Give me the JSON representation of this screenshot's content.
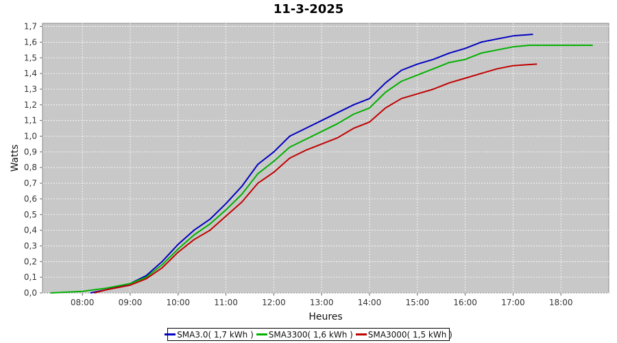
{
  "chart_data": {
    "type": "line",
    "title": "11-3-2025",
    "xlabel": "Heures",
    "ylabel": "Watts",
    "xlim": [
      "07:10",
      "19:00"
    ],
    "ylim": [
      0,
      1.72
    ],
    "x_ticks": [
      "08:00",
      "09:00",
      "10:00",
      "11:00",
      "12:00",
      "13:00",
      "14:00",
      "15:00",
      "16:00",
      "17:00",
      "18:00"
    ],
    "y_ticks": [
      "0,0",
      "0,1",
      "0,2",
      "0,3",
      "0,4",
      "0,5",
      "0,6",
      "0,7",
      "0,8",
      "0,9",
      "1,0",
      "1,1",
      "1,2",
      "1,3",
      "1,4",
      "1,5",
      "1,6",
      "1,7"
    ],
    "grid": true,
    "legend_position": "bottom",
    "background_color": "#c8c8c8",
    "series": [
      {
        "name": "SMA3.0( 1,7 kWh )",
        "color": "#0000c0",
        "x": [
          "08:10",
          "08:30",
          "09:00",
          "09:20",
          "09:40",
          "10:00",
          "10:20",
          "10:40",
          "11:00",
          "11:20",
          "11:40",
          "12:00",
          "12:20",
          "12:40",
          "13:00",
          "13:20",
          "13:40",
          "14:00",
          "14:20",
          "14:40",
          "15:00",
          "15:20",
          "15:40",
          "16:00",
          "16:20",
          "16:40",
          "17:00",
          "17:25"
        ],
        "y": [
          0.0,
          0.02,
          0.06,
          0.11,
          0.2,
          0.31,
          0.4,
          0.47,
          0.57,
          0.68,
          0.82,
          0.9,
          1.0,
          1.05,
          1.1,
          1.15,
          1.2,
          1.24,
          1.34,
          1.42,
          1.46,
          1.49,
          1.53,
          1.56,
          1.6,
          1.62,
          1.64,
          1.65
        ]
      },
      {
        "name": "SMA3300( 1,6 kWh )",
        "color": "#00b000",
        "x": [
          "07:20",
          "08:00",
          "08:30",
          "09:00",
          "09:20",
          "09:40",
          "10:00",
          "10:20",
          "10:40",
          "11:00",
          "11:20",
          "11:40",
          "12:00",
          "12:20",
          "12:40",
          "13:00",
          "13:20",
          "13:40",
          "14:00",
          "14:20",
          "14:40",
          "15:00",
          "15:20",
          "15:40",
          "16:00",
          "16:20",
          "16:40",
          "17:00",
          "17:20",
          "17:40",
          "18:00",
          "18:40"
        ],
        "y": [
          0.0,
          0.01,
          0.03,
          0.06,
          0.1,
          0.18,
          0.28,
          0.37,
          0.44,
          0.53,
          0.63,
          0.76,
          0.84,
          0.93,
          0.98,
          1.03,
          1.08,
          1.14,
          1.18,
          1.28,
          1.35,
          1.39,
          1.43,
          1.47,
          1.49,
          1.53,
          1.55,
          1.57,
          1.58,
          1.58,
          1.58,
          1.58
        ]
      },
      {
        "name": "SMA3000( 1,5 kWh )",
        "color": "#c00000",
        "x": [
          "08:15",
          "08:30",
          "09:00",
          "09:20",
          "09:40",
          "10:00",
          "10:20",
          "10:40",
          "11:00",
          "11:20",
          "11:40",
          "12:00",
          "12:20",
          "12:40",
          "13:00",
          "13:20",
          "13:40",
          "14:00",
          "14:20",
          "14:40",
          "15:00",
          "15:20",
          "15:40",
          "16:00",
          "16:20",
          "16:40",
          "17:00",
          "17:30"
        ],
        "y": [
          0.0,
          0.02,
          0.05,
          0.09,
          0.16,
          0.26,
          0.34,
          0.4,
          0.49,
          0.58,
          0.7,
          0.77,
          0.86,
          0.91,
          0.95,
          0.99,
          1.05,
          1.09,
          1.18,
          1.24,
          1.27,
          1.3,
          1.34,
          1.37,
          1.4,
          1.43,
          1.45,
          1.46
        ]
      }
    ]
  }
}
